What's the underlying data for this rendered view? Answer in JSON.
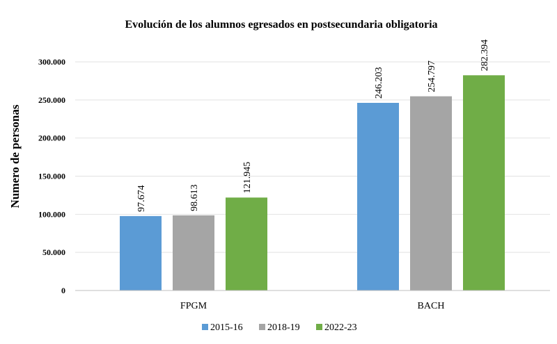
{
  "chart_data": {
    "type": "bar",
    "title": "Evolución de los alumnos egresados en postsecundaria obligatoria",
    "xlabel": "",
    "ylabel": "Numero de personas",
    "ylim": [
      0,
      300000
    ],
    "yticks": [
      0,
      50000,
      100000,
      150000,
      200000,
      250000,
      300000
    ],
    "ytick_labels": [
      "0",
      "50.000",
      "100.000",
      "150.000",
      "200.000",
      "250.000",
      "300.000"
    ],
    "categories": [
      "FPGM",
      "BACH"
    ],
    "series": [
      {
        "name": "2015-16",
        "color": "#5b9bd5",
        "values": [
          97674,
          246203
        ],
        "labels": [
          "97.674",
          "246.203"
        ]
      },
      {
        "name": "2018-19",
        "color": "#a5a5a5",
        "values": [
          98613,
          254797
        ],
        "labels": [
          "98.613",
          "254.797"
        ]
      },
      {
        "name": "2022-23",
        "color": "#70ad47",
        "values": [
          121945,
          282394
        ],
        "labels": [
          "121.945",
          "282.394"
        ]
      }
    ],
    "grid": true,
    "legend": "bottom"
  }
}
